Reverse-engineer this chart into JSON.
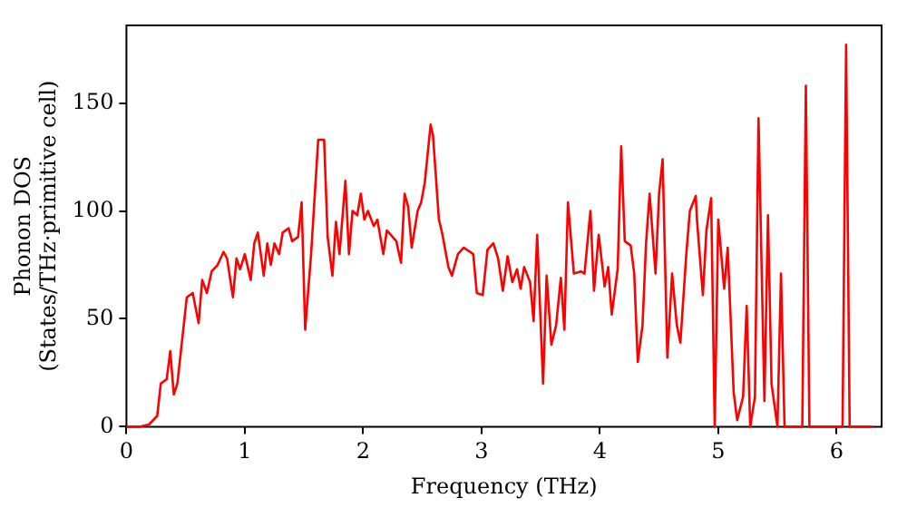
{
  "chart_data": {
    "type": "line",
    "xlabel": "Frequency (THz)",
    "ylabel": "Phonon DOS\n(States/THz·primitive cell)",
    "xlim": [
      0,
      6.38
    ],
    "ylim": [
      0,
      186
    ],
    "xticks": [
      0,
      1,
      2,
      3,
      4,
      5,
      6
    ],
    "yticks": [
      0,
      50,
      100,
      150
    ],
    "grid": false,
    "legend": false,
    "marker": "none",
    "line_style": "solid",
    "x": [
      0,
      0.11,
      0.19,
      0.26,
      0.29,
      0.34,
      0.37,
      0.4,
      0.43,
      0.48,
      0.51,
      0.56,
      0.61,
      0.64,
      0.68,
      0.72,
      0.77,
      0.82,
      0.85,
      0.9,
      0.93,
      0.96,
      1.0,
      1.05,
      1.08,
      1.11,
      1.16,
      1.19,
      1.22,
      1.25,
      1.29,
      1.32,
      1.37,
      1.4,
      1.45,
      1.48,
      1.51,
      1.56,
      1.62,
      1.67,
      1.7,
      1.74,
      1.77,
      1.8,
      1.85,
      1.88,
      1.91,
      1.95,
      1.98,
      2.01,
      2.04,
      2.09,
      2.12,
      2.17,
      2.2,
      2.28,
      2.32,
      2.35,
      2.38,
      2.41,
      2.46,
      2.49,
      2.52,
      2.57,
      2.59,
      2.64,
      2.67,
      2.72,
      2.75,
      2.8,
      2.85,
      2.93,
      2.96,
      3.01,
      3.05,
      3.1,
      3.14,
      3.18,
      3.22,
      3.26,
      3.3,
      3.33,
      3.36,
      3.41,
      3.44,
      3.47,
      3.52,
      3.55,
      3.59,
      3.63,
      3.67,
      3.7,
      3.73,
      3.78,
      3.84,
      3.87,
      3.92,
      3.95,
      3.99,
      4.04,
      4.07,
      4.1,
      4.15,
      4.18,
      4.21,
      4.26,
      4.29,
      4.32,
      4.36,
      4.39,
      4.42,
      4.47,
      4.5,
      4.53,
      4.57,
      4.61,
      4.65,
      4.68,
      4.73,
      4.76,
      4.81,
      4.82,
      4.87,
      4.9,
      4.94,
      4.97,
      5.0,
      5.05,
      5.08,
      5.13,
      5.16,
      5.21,
      5.24,
      5.27,
      5.31,
      5.34,
      5.39,
      5.42,
      5.45,
      5.5,
      5.53,
      5.56,
      5.71,
      5.74,
      5.77,
      6.05,
      6.08,
      6.11,
      6.3
    ],
    "series": [
      {
        "color": "#ff0000",
        "values": [
          0,
          0,
          1,
          5,
          20,
          22,
          35,
          15,
          20,
          45,
          60,
          62,
          48,
          68,
          62,
          72,
          75,
          81,
          78,
          60,
          78,
          73,
          80,
          68,
          85,
          90,
          70,
          85,
          75,
          85,
          80,
          90,
          92,
          86,
          88,
          104,
          45,
          80,
          133,
          133,
          88,
          70,
          95,
          80,
          114,
          80,
          100,
          98,
          108,
          96,
          100,
          93,
          96,
          80,
          91,
          86,
          76,
          108,
          102,
          83,
          100,
          104,
          113,
          140,
          135,
          96,
          89,
          74,
          70,
          80,
          83,
          80,
          62,
          61,
          82,
          85,
          78,
          63,
          79,
          67,
          73,
          64,
          74,
          67,
          49,
          89,
          20,
          70,
          38,
          47,
          69,
          45,
          104,
          71,
          72,
          71,
          100,
          63,
          89,
          65,
          74,
          52,
          73,
          130,
          86,
          84,
          71,
          30,
          47,
          85,
          108,
          71,
          108,
          124,
          32,
          71,
          47,
          39,
          80,
          100,
          107,
          96,
          61,
          91,
          106,
          0,
          96,
          64,
          83,
          16,
          3,
          14,
          56,
          0,
          14,
          143,
          12,
          98,
          20,
          0,
          71,
          0,
          0,
          158,
          0,
          0,
          177,
          0,
          0
        ]
      }
    ]
  }
}
